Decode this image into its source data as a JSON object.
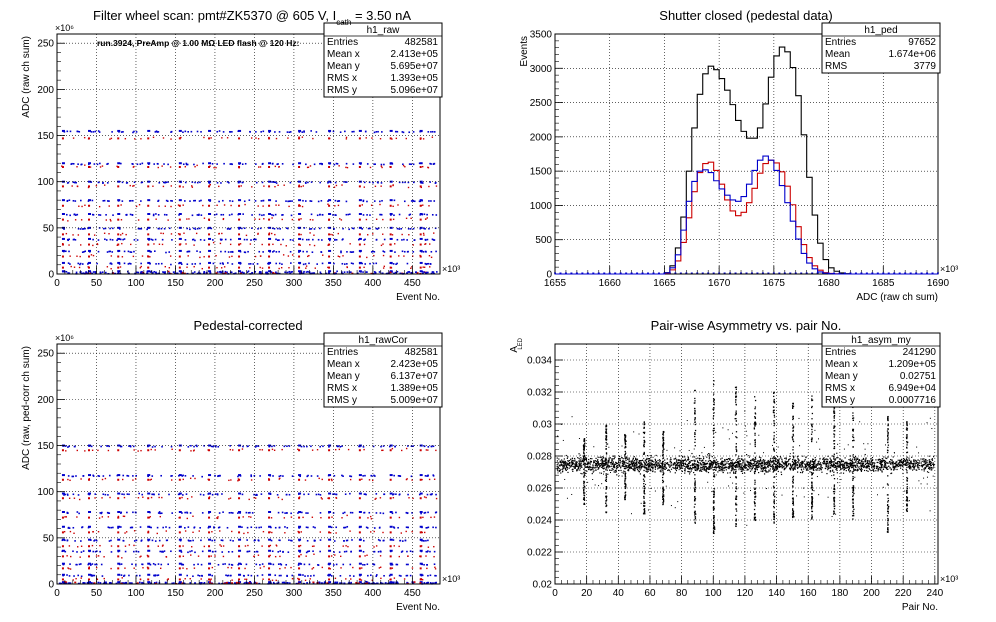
{
  "colors": {
    "red": "#cc0000",
    "blue": "#0000cc",
    "black": "#000000",
    "grid": "#000000"
  },
  "chart_data": [
    {
      "id": "p1",
      "type": "scatter",
      "title_main": "Filter wheel scan: pmt#ZK5370 @   605 V, I",
      "title_sub": "cath",
      "title_tail": " = 3.50 nA",
      "annotation": "run.3924, PreAmp @ 1.00 MΩ LED flash @  120 Hz:",
      "xlabel": "Event No.",
      "ylabel": "ADC (raw ch sum)",
      "x_exponent": "×10³",
      "y_exponent": "×10⁶",
      "xlim": [
        0,
        485
      ],
      "ylim": [
        0,
        260
      ],
      "xticks": [
        0,
        50,
        100,
        150,
        200,
        250,
        300,
        350,
        400,
        450
      ],
      "yticks": [
        0,
        50,
        100,
        150,
        200,
        250
      ],
      "grid": true,
      "x_blocks": [
        [
          5,
          35
        ],
        [
          38,
          70
        ],
        [
          75,
          108
        ],
        [
          113,
          145
        ],
        [
          153,
          186
        ],
        [
          190,
          222
        ],
        [
          228,
          262
        ],
        [
          266,
          298
        ],
        [
          304,
          336
        ],
        [
          342,
          376
        ],
        [
          381,
          414
        ],
        [
          420,
          452
        ],
        [
          458,
          480
        ]
      ],
      "levels_blue": [
        155,
        120,
        100,
        80,
        65,
        50,
        38,
        25,
        12,
        3
      ],
      "levels_red": [
        148,
        117,
        96,
        75,
        60,
        44,
        33,
        20,
        8
      ],
      "stats": {
        "name": "h1_raw",
        "rows": [
          {
            "label": "Entries",
            "value": "482581"
          },
          {
            "label": "Mean x",
            "value": "2.413e+05"
          },
          {
            "label": "Mean y",
            "value": "5.695e+07"
          },
          {
            "label": "RMS x",
            "value": "1.393e+05"
          },
          {
            "label": "RMS y",
            "value": "5.096e+07"
          }
        ]
      }
    },
    {
      "id": "p2",
      "type": "line",
      "title": "Shutter closed (pedestal data)",
      "xlabel": "ADC (raw ch sum)",
      "ylabel": "Events",
      "x_exponent": "×10³",
      "xlim": [
        1655,
        1690
      ],
      "ylim": [
        0,
        3500
      ],
      "xticks": [
        1655,
        1660,
        1665,
        1670,
        1675,
        1680,
        1685,
        1690
      ],
      "yticks": [
        0,
        500,
        1000,
        1500,
        2000,
        2500,
        3000,
        3500
      ],
      "grid": true,
      "x": [
        1665.0,
        1665.5,
        1666.0,
        1666.5,
        1667.0,
        1667.5,
        1668.0,
        1668.5,
        1669.0,
        1669.5,
        1670.0,
        1670.5,
        1671.0,
        1671.5,
        1672.0,
        1672.5,
        1673.0,
        1673.5,
        1674.0,
        1674.5,
        1675.0,
        1675.5,
        1676.0,
        1676.5,
        1677.0,
        1677.5,
        1678.0,
        1678.5,
        1679.0,
        1679.5,
        1680.0,
        1680.5,
        1681.0,
        1681.5,
        1682.0
      ],
      "series": [
        {
          "color": "#000000",
          "values": [
            20,
            120,
            380,
            830,
            1500,
            2130,
            2620,
            2920,
            3030,
            2980,
            2850,
            2680,
            2470,
            2240,
            2080,
            1980,
            1980,
            2130,
            2480,
            2870,
            3180,
            3310,
            3240,
            3010,
            2600,
            2030,
            1410,
            860,
            450,
            210,
            90,
            40,
            15,
            5,
            0
          ]
        },
        {
          "color": "#cc0000",
          "values": [
            10,
            60,
            190,
            460,
            820,
            1200,
            1480,
            1610,
            1630,
            1510,
            1310,
            1080,
            920,
            850,
            900,
            1040,
            1250,
            1470,
            1610,
            1660,
            1620,
            1490,
            1280,
            1010,
            690,
            430,
            240,
            120,
            55,
            20,
            8,
            3,
            0,
            0,
            0
          ]
        },
        {
          "color": "#0000cc",
          "values": [
            15,
            90,
            280,
            640,
            1060,
            1350,
            1500,
            1520,
            1480,
            1360,
            1240,
            1150,
            1080,
            1060,
            1130,
            1310,
            1510,
            1660,
            1720,
            1660,
            1510,
            1290,
            1040,
            770,
            510,
            300,
            160,
            75,
            30,
            12,
            4,
            0,
            0,
            0,
            0
          ]
        }
      ],
      "stats": {
        "name": "h1_ped",
        "rows": [
          {
            "label": "Entries",
            "value": "97652"
          },
          {
            "label": "Mean",
            "value": "1.674e+06"
          },
          {
            "label": "RMS",
            "value": "3779"
          }
        ]
      }
    },
    {
      "id": "p3",
      "type": "scatter",
      "title": "Pedestal-corrected",
      "xlabel": "Event No.",
      "ylabel": "ADC (raw, ped-corr ch sum)",
      "x_exponent": "×10³",
      "y_exponent": "×10⁶",
      "xlim": [
        0,
        485
      ],
      "ylim": [
        0,
        260
      ],
      "xticks": [
        0,
        50,
        100,
        150,
        200,
        250,
        300,
        350,
        400,
        450
      ],
      "yticks": [
        0,
        50,
        100,
        150,
        200,
        250
      ],
      "grid": true,
      "x_blocks": [
        [
          5,
          35
        ],
        [
          38,
          70
        ],
        [
          75,
          108
        ],
        [
          113,
          145
        ],
        [
          153,
          186
        ],
        [
          190,
          222
        ],
        [
          228,
          262
        ],
        [
          266,
          298
        ],
        [
          304,
          336
        ],
        [
          342,
          376
        ],
        [
          381,
          414
        ],
        [
          420,
          452
        ],
        [
          458,
          480
        ]
      ],
      "levels_blue": [
        150,
        118,
        98,
        78,
        62,
        48,
        36,
        22,
        10,
        2
      ],
      "levels_red": [
        146,
        114,
        94,
        73,
        57,
        42,
        31,
        18,
        6
      ],
      "stats": {
        "name": "h1_rawCor",
        "rows": [
          {
            "label": "Entries",
            "value": "482581"
          },
          {
            "label": "Mean x",
            "value": "2.423e+05"
          },
          {
            "label": "Mean y",
            "value": "6.137e+07"
          },
          {
            "label": "RMS x",
            "value": "1.389e+05"
          },
          {
            "label": "RMS y",
            "value": "5.009e+07"
          }
        ]
      }
    },
    {
      "id": "p4",
      "type": "scatter",
      "title": "Pair-wise Asymmetry vs. pair No.",
      "xlabel": "Pair No.",
      "ylabel": "A",
      "ylabel_sub": "LED",
      "x_exponent": "×10³",
      "xlim": [
        0,
        242
      ],
      "ylim": [
        0.02,
        0.035
      ],
      "xticks": [
        0,
        20,
        40,
        60,
        80,
        100,
        120,
        140,
        160,
        180,
        200,
        220,
        240
      ],
      "yticks": [
        0.02,
        0.022,
        0.024,
        0.026,
        0.028,
        0.03,
        0.032,
        0.034
      ],
      "ytick_labels": [
        "0.02",
        "0.022",
        "0.024",
        "0.026",
        "0.028",
        "0.03",
        "0.032",
        "0.034"
      ],
      "grid": true,
      "band_center": 0.0275,
      "band_halfwidth": 0.0008,
      "spikes": [
        {
          "x": 18,
          "top": 0.0292,
          "bottom": 0.025
        },
        {
          "x": 32,
          "top": 0.03,
          "bottom": 0.0245
        },
        {
          "x": 44,
          "top": 0.0294,
          "bottom": 0.0252
        },
        {
          "x": 56,
          "top": 0.0302,
          "bottom": 0.0244
        },
        {
          "x": 68,
          "top": 0.0296,
          "bottom": 0.025
        },
        {
          "x": 88,
          "top": 0.0322,
          "bottom": 0.0238
        },
        {
          "x": 100,
          "top": 0.0328,
          "bottom": 0.0232
        },
        {
          "x": 114,
          "top": 0.0324,
          "bottom": 0.0236
        },
        {
          "x": 126,
          "top": 0.0318,
          "bottom": 0.024
        },
        {
          "x": 138,
          "top": 0.0321,
          "bottom": 0.0238
        },
        {
          "x": 150,
          "top": 0.0315,
          "bottom": 0.0242
        },
        {
          "x": 162,
          "top": 0.0318,
          "bottom": 0.024
        },
        {
          "x": 176,
          "top": 0.0311,
          "bottom": 0.0244
        },
        {
          "x": 188,
          "top": 0.0317,
          "bottom": 0.0241
        },
        {
          "x": 210,
          "top": 0.0306,
          "bottom": 0.0232
        },
        {
          "x": 222,
          "top": 0.0302,
          "bottom": 0.0244
        }
      ],
      "stats": {
        "name": "h1_asym_my",
        "rows": [
          {
            "label": "Entries",
            "value": "241290"
          },
          {
            "label": "Mean x",
            "value": "1.209e+05"
          },
          {
            "label": "Mean y",
            "value": "0.02751"
          },
          {
            "label": "RMS x",
            "value": "6.949e+04"
          },
          {
            "label": "RMS y",
            "value": "0.0007716"
          }
        ]
      }
    }
  ]
}
